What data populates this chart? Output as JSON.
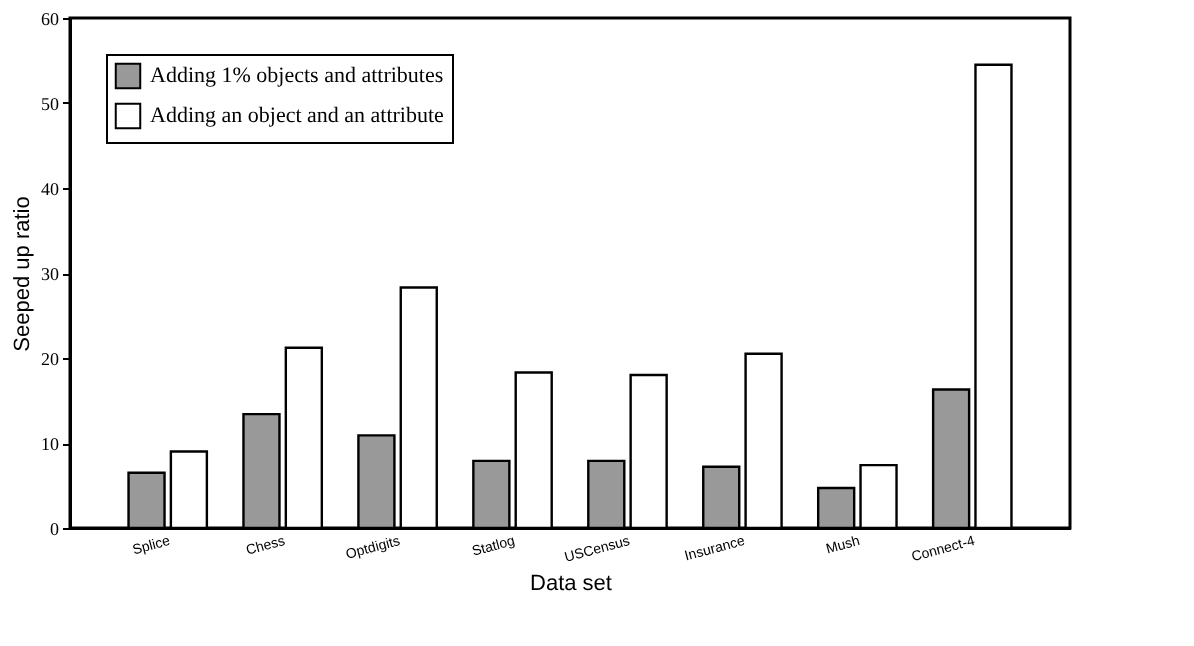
{
  "chart_data": {
    "type": "bar",
    "xlabel": "Data set",
    "ylabel": "Seeped up ratio",
    "categories": [
      "Splice",
      "Chess",
      "Optdigits",
      "Statlog",
      "USCensus",
      "Insurance",
      "Mush",
      "Connect-4"
    ],
    "series": [
      {
        "name": "Adding 1% objects and attributes",
        "color": "#999999",
        "values": [
          6.5,
          13.4,
          10.9,
          7.9,
          7.9,
          7.2,
          4.7,
          16.3
        ]
      },
      {
        "name": "Adding an object and an attribute",
        "color": "#ffffff",
        "values": [
          9.0,
          21.2,
          28.3,
          18.3,
          18.0,
          20.5,
          7.4,
          54.5
        ]
      }
    ],
    "ylim": [
      0,
      60
    ],
    "yticks": [
      0,
      10,
      20,
      30,
      40,
      50,
      60
    ],
    "grid": false,
    "legend": "top left"
  }
}
